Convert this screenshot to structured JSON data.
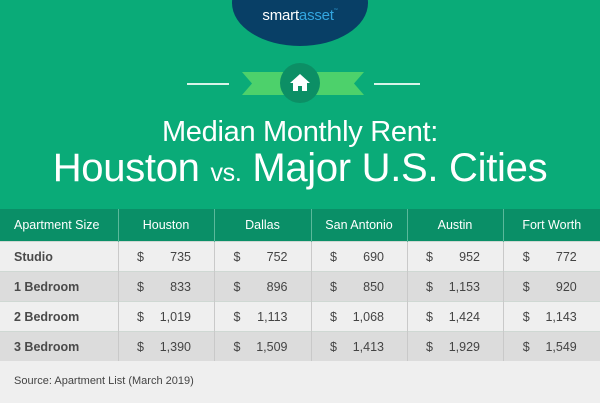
{
  "brand": {
    "logo_part1": "smart",
    "logo_part2": "asset",
    "trademark": "™"
  },
  "icon": "home-icon",
  "colors": {
    "banner": "#0aab78",
    "header": "#0a8f67",
    "logo_bg": "#083f66",
    "ribbon": "#4dd16b",
    "circle": "#0c8f65"
  },
  "title": {
    "line1": "Median Monthly Rent:",
    "city": "Houston",
    "vs": "vs.",
    "rest": "Major U.S. Cities"
  },
  "table": {
    "headers": [
      "Apartment Size",
      "Houston",
      "Dallas",
      "San Antonio",
      "Austin",
      "Fort Worth"
    ],
    "currency": "$",
    "rows": [
      {
        "label": "Studio",
        "values": [
          "735",
          "752",
          "690",
          "952",
          "772"
        ]
      },
      {
        "label": "1 Bedroom",
        "values": [
          "833",
          "896",
          "850",
          "1,153",
          "920"
        ]
      },
      {
        "label": "2 Bedroom",
        "values": [
          "1,019",
          "1,113",
          "1,068",
          "1,424",
          "1,143"
        ]
      },
      {
        "label": "3 Bedroom",
        "values": [
          "1,390",
          "1,509",
          "1,413",
          "1,929",
          "1,549"
        ]
      }
    ]
  },
  "source": "Source: Apartment List (March 2019)"
}
